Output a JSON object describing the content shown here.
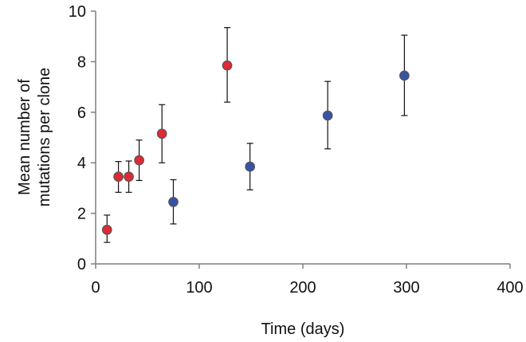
{
  "chart_data": {
    "type": "scatter",
    "title": "",
    "xlabel": "Time (days)",
    "ylabel_lines": [
      "Mean number of",
      "mutations per clone"
    ],
    "xlim": [
      0,
      400
    ],
    "ylim": [
      0,
      10
    ],
    "x_ticks": [
      0,
      100,
      200,
      300,
      400
    ],
    "y_ticks": [
      0,
      2,
      4,
      6,
      8,
      10
    ],
    "grid": false,
    "legend": "none",
    "series": [
      {
        "name": "red",
        "color": "#dd2a35",
        "edge_color": "#555555",
        "points": [
          {
            "x": 11,
            "y": 1.35,
            "err_low": 0.5,
            "err_high": 0.58
          },
          {
            "x": 22,
            "y": 3.45,
            "err_low": 0.62,
            "err_high": 0.6
          },
          {
            "x": 32,
            "y": 3.45,
            "err_low": 0.62,
            "err_high": 0.62
          },
          {
            "x": 42,
            "y": 4.1,
            "err_low": 0.8,
            "err_high": 0.8
          },
          {
            "x": 64,
            "y": 5.15,
            "err_low": 1.15,
            "err_high": 1.15
          },
          {
            "x": 127,
            "y": 7.85,
            "err_low": 1.45,
            "err_high": 1.5
          }
        ]
      },
      {
        "name": "blue",
        "color": "#3953a4",
        "edge_color": "#555555",
        "points": [
          {
            "x": 75,
            "y": 2.45,
            "err_low": 0.87,
            "err_high": 0.88
          },
          {
            "x": 149,
            "y": 3.85,
            "err_low": 0.92,
            "err_high": 0.92
          },
          {
            "x": 224,
            "y": 5.87,
            "err_low": 1.32,
            "err_high": 1.35
          },
          {
            "x": 298,
            "y": 7.45,
            "err_low": 1.58,
            "err_high": 1.6
          }
        ]
      }
    ]
  }
}
